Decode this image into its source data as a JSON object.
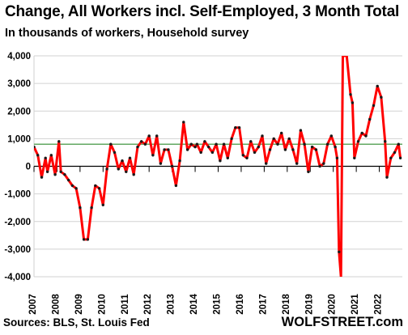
{
  "chart_data": {
    "type": "line",
    "title": "Change, All Workers incl. Self-Employed, 3 Month Total",
    "subtitle": "In thousands of workers, Household survey",
    "xlabel": "",
    "ylabel": "",
    "ylim": [
      -4000,
      4000
    ],
    "y_ticks": [
      -4000,
      -3000,
      -2000,
      -1000,
      0,
      1000,
      2000,
      3000,
      4000
    ],
    "y_tick_labels": [
      "-4,000",
      "-3,000",
      "-2,000",
      "-1,000",
      "0",
      "1,000",
      "2,000",
      "3,000",
      "4,000"
    ],
    "x_range": [
      "2007-01",
      "2022-12"
    ],
    "x_tick_labels": [
      "2007",
      "2008",
      "2009",
      "2010",
      "2011",
      "2012",
      "2013",
      "2014",
      "2015",
      "2016",
      "2017",
      "2018",
      "2019",
      "2020",
      "2021",
      "2022"
    ],
    "reference_line": {
      "value": 800,
      "color": "#2e8b2e"
    },
    "series": [
      {
        "color": "#ff0000",
        "marker_color": "#1a1a1a",
        "x": [
          "2007-01",
          "2007-03",
          "2007-05",
          "2007-07",
          "2007-08",
          "2007-10",
          "2007-12",
          "2008-02",
          "2008-03",
          "2008-05",
          "2008-07",
          "2008-09",
          "2008-11",
          "2009-01",
          "2009-03",
          "2009-05",
          "2009-07",
          "2009-09",
          "2009-11",
          "2010-01",
          "2010-03",
          "2010-05",
          "2010-07",
          "2010-09",
          "2010-11",
          "2011-01",
          "2011-03",
          "2011-05",
          "2011-07",
          "2011-09",
          "2011-11",
          "2012-01",
          "2012-03",
          "2012-05",
          "2012-07",
          "2012-09",
          "2012-11",
          "2013-01",
          "2013-03",
          "2013-05",
          "2013-07",
          "2013-09",
          "2013-11",
          "2014-01",
          "2014-02",
          "2014-04",
          "2014-06",
          "2014-08",
          "2014-10",
          "2014-12",
          "2015-02",
          "2015-04",
          "2015-06",
          "2015-08",
          "2015-10",
          "2015-12",
          "2016-02",
          "2016-04",
          "2016-06",
          "2016-08",
          "2016-10",
          "2016-12",
          "2017-02",
          "2017-04",
          "2017-06",
          "2017-08",
          "2017-10",
          "2017-12",
          "2018-02",
          "2018-04",
          "2018-06",
          "2018-08",
          "2018-10",
          "2018-12",
          "2019-02",
          "2019-04",
          "2019-06",
          "2019-08",
          "2019-10",
          "2019-12",
          "2020-02",
          "2020-03",
          "2020-04",
          "2020-05",
          "2020-06",
          "2020-08",
          "2020-10",
          "2020-11",
          "2020-12",
          "2021-02",
          "2021-04",
          "2021-06",
          "2021-08",
          "2021-10",
          "2021-12",
          "2022-02",
          "2022-04",
          "2022-05",
          "2022-07",
          "2022-09",
          "2022-11",
          "2022-12"
        ],
        "y": [
          700,
          400,
          -400,
          300,
          -200,
          400,
          -300,
          900,
          -200,
          -300,
          -500,
          -700,
          -800,
          -1500,
          -2650,
          -2650,
          -1500,
          -700,
          -800,
          -1400,
          -100,
          800,
          500,
          -100,
          200,
          -200,
          300,
          -300,
          700,
          900,
          800,
          1100,
          400,
          1100,
          100,
          600,
          600,
          0,
          -700,
          200,
          1600,
          600,
          800,
          700,
          800,
          500,
          900,
          700,
          500,
          800,
          200,
          800,
          300,
          1000,
          1400,
          1400,
          400,
          300,
          900,
          500,
          700,
          1100,
          100,
          600,
          1000,
          800,
          1200,
          600,
          1000,
          600,
          100,
          1300,
          800,
          -200,
          700,
          600,
          0,
          100,
          800,
          1100,
          700,
          300,
          -3100,
          -4000,
          4000,
          4000,
          2600,
          2300,
          300,
          900,
          1200,
          1100,
          1700,
          2200,
          2900,
          2500,
          900,
          -400,
          300,
          500,
          800,
          300
        ]
      }
    ],
    "labels": {
      "title": "Change, All Workers incl. Self-Employed, 3 Month Total",
      "subtitle": "In thousands of workers, Household survey",
      "source": "Sources: BLS, St. Louis Fed",
      "brand": "WOLFSTREET.com"
    }
  }
}
